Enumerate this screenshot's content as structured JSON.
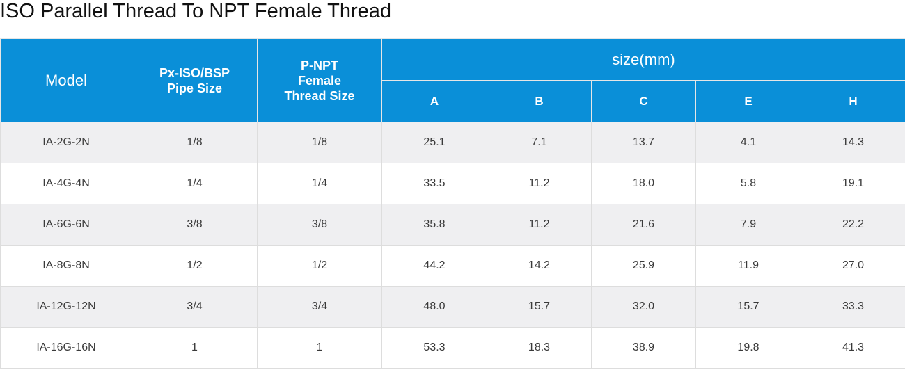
{
  "title": "ISO Parallel Thread To NPT Female Thread",
  "header": {
    "model": "Model",
    "pipe_size": [
      "Px-ISO/BSP",
      "Pipe Size"
    ],
    "npt_size": [
      "P-NPT",
      "Female",
      "Thread Size"
    ],
    "size_group": "size(mm)",
    "dims": [
      "A",
      "B",
      "C",
      "E",
      "H"
    ]
  },
  "rows": [
    {
      "model": "IA-2G-2N",
      "pipe": "1/8",
      "npt": "1/8",
      "A": "25.1",
      "B": "7.1",
      "C": "13.7",
      "E": "4.1",
      "H": "14.3"
    },
    {
      "model": "IA-4G-4N",
      "pipe": "1/4",
      "npt": "1/4",
      "A": "33.5",
      "B": "11.2",
      "C": "18.0",
      "E": "5.8",
      "H": "19.1"
    },
    {
      "model": "IA-6G-6N",
      "pipe": "3/8",
      "npt": "3/8",
      "A": "35.8",
      "B": "11.2",
      "C": "21.6",
      "E": "7.9",
      "H": "22.2"
    },
    {
      "model": "IA-8G-8N",
      "pipe": "1/2",
      "npt": "1/2",
      "A": "44.2",
      "B": "14.2",
      "C": "25.9",
      "E": "11.9",
      "H": "27.0"
    },
    {
      "model": "IA-12G-12N",
      "pipe": "3/4",
      "npt": "3/4",
      "A": "48.0",
      "B": "15.7",
      "C": "32.0",
      "E": "15.7",
      "H": "33.3"
    },
    {
      "model": "IA-16G-16N",
      "pipe": "1",
      "npt": "1",
      "A": "53.3",
      "B": "18.3",
      "C": "38.9",
      "E": "19.8",
      "H": "41.3"
    }
  ],
  "colors": {
    "header_bg": "#0a8fd8",
    "header_text": "#ffffff",
    "row_odd_bg": "#efeff1",
    "row_even_bg": "#ffffff"
  }
}
